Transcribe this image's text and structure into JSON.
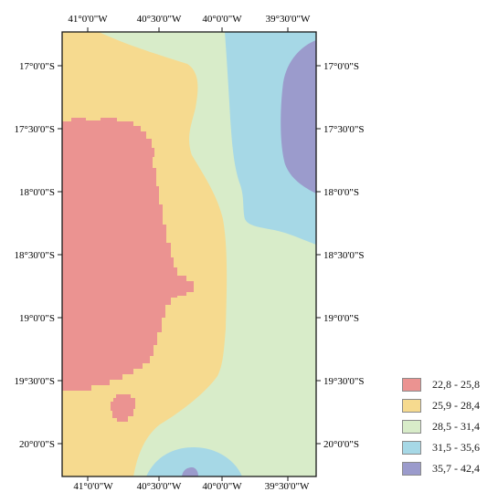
{
  "map": {
    "longitude_labels": [
      "41°0'0\"W",
      "40°30'0\"W",
      "40°0'0\"W",
      "39°30'0\"W"
    ],
    "latitude_labels": [
      "17°0'0\"S",
      "17°30'0\"S",
      "18°0'0\"S",
      "18°30'0\"S",
      "19°0'0\"S",
      "19°30'0\"S",
      "20°0'0\"S"
    ]
  },
  "legend": {
    "items": [
      {
        "label": "22,8 - 25,8",
        "color": "#eb9391"
      },
      {
        "label": "25,9 - 28,4",
        "color": "#f6da8f"
      },
      {
        "label": "28,5 - 31,4",
        "color": "#d8ecc9"
      },
      {
        "label": "31,5 - 35,6",
        "color": "#a6d8e6"
      },
      {
        "label": "35,7 - 42,4",
        "color": "#9b9bcc"
      }
    ]
  }
}
